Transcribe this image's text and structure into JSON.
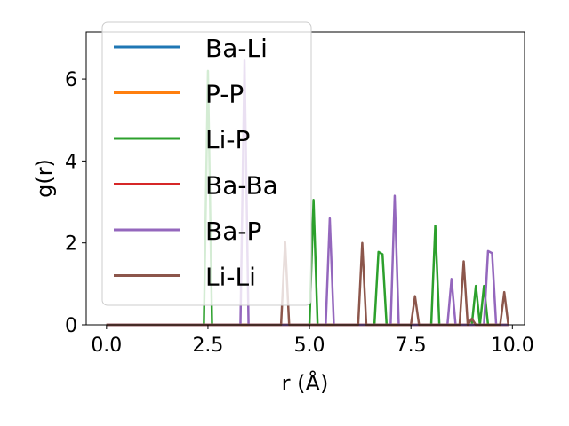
{
  "chart_data": {
    "type": "line",
    "xlabel": "r (Å)",
    "ylabel": "g(r)",
    "xlim": [
      -0.5,
      10.3
    ],
    "ylim": [
      0,
      7.15
    ],
    "xticks": [
      0.0,
      2.5,
      5.0,
      7.5,
      10.0
    ],
    "xtick_labels": [
      "0.0",
      "2.5",
      "5.0",
      "7.5",
      "10.0"
    ],
    "yticks": [
      0,
      2,
      4,
      6
    ],
    "ytick_labels": [
      "0",
      "2",
      "4",
      "6"
    ],
    "grid": false,
    "legend_position": "upper-left",
    "series": [
      {
        "name": "Ba-Li",
        "color": "#1f77b4",
        "x": [
          0.0,
          9.9
        ],
        "y": [
          0,
          0
        ]
      },
      {
        "name": "P-P",
        "color": "#ff7f0e",
        "x": [
          0.0,
          9.9
        ],
        "y": [
          0,
          0
        ]
      },
      {
        "name": "Li-P",
        "color": "#2ca02c",
        "x": [
          0.0,
          2.4,
          2.5,
          2.6,
          4.9,
          5.0,
          5.1,
          5.2,
          6.6,
          6.7,
          6.8,
          6.9,
          8.0,
          8.1,
          8.2,
          9.0,
          9.1,
          9.2,
          9.3,
          9.4,
          9.9
        ],
        "y": [
          0,
          0,
          6.2,
          0,
          0,
          0,
          3.05,
          0,
          0,
          1.78,
          1.72,
          0,
          0,
          2.42,
          0,
          0,
          0.95,
          0,
          0.95,
          0,
          0
        ]
      },
      {
        "name": "Ba-Ba",
        "color": "#d62728",
        "x": [
          0.0,
          9.9
        ],
        "y": [
          0,
          0
        ]
      },
      {
        "name": "Ba-P",
        "color": "#9467bd",
        "x": [
          0.0,
          3.3,
          3.4,
          3.5,
          5.4,
          5.5,
          5.6,
          7.0,
          7.1,
          7.2,
          8.4,
          8.5,
          8.6,
          9.3,
          9.4,
          9.5,
          9.6,
          9.9
        ],
        "y": [
          0,
          0,
          6.45,
          0,
          0,
          2.6,
          0,
          0,
          3.15,
          0,
          0,
          1.12,
          0,
          0,
          1.8,
          1.75,
          0,
          0
        ]
      },
      {
        "name": "Li-Li",
        "color": "#8c564b",
        "x": [
          0.0,
          4.3,
          4.4,
          4.5,
          6.2,
          6.3,
          6.4,
          7.5,
          7.6,
          7.7,
          8.7,
          8.8,
          8.9,
          9.0,
          9.1,
          9.7,
          9.8,
          9.9
        ],
        "y": [
          0,
          0,
          2.02,
          0,
          0,
          2.0,
          0,
          0,
          0.7,
          0,
          0,
          1.55,
          0,
          0.15,
          0,
          0,
          0.8,
          0
        ]
      }
    ]
  }
}
